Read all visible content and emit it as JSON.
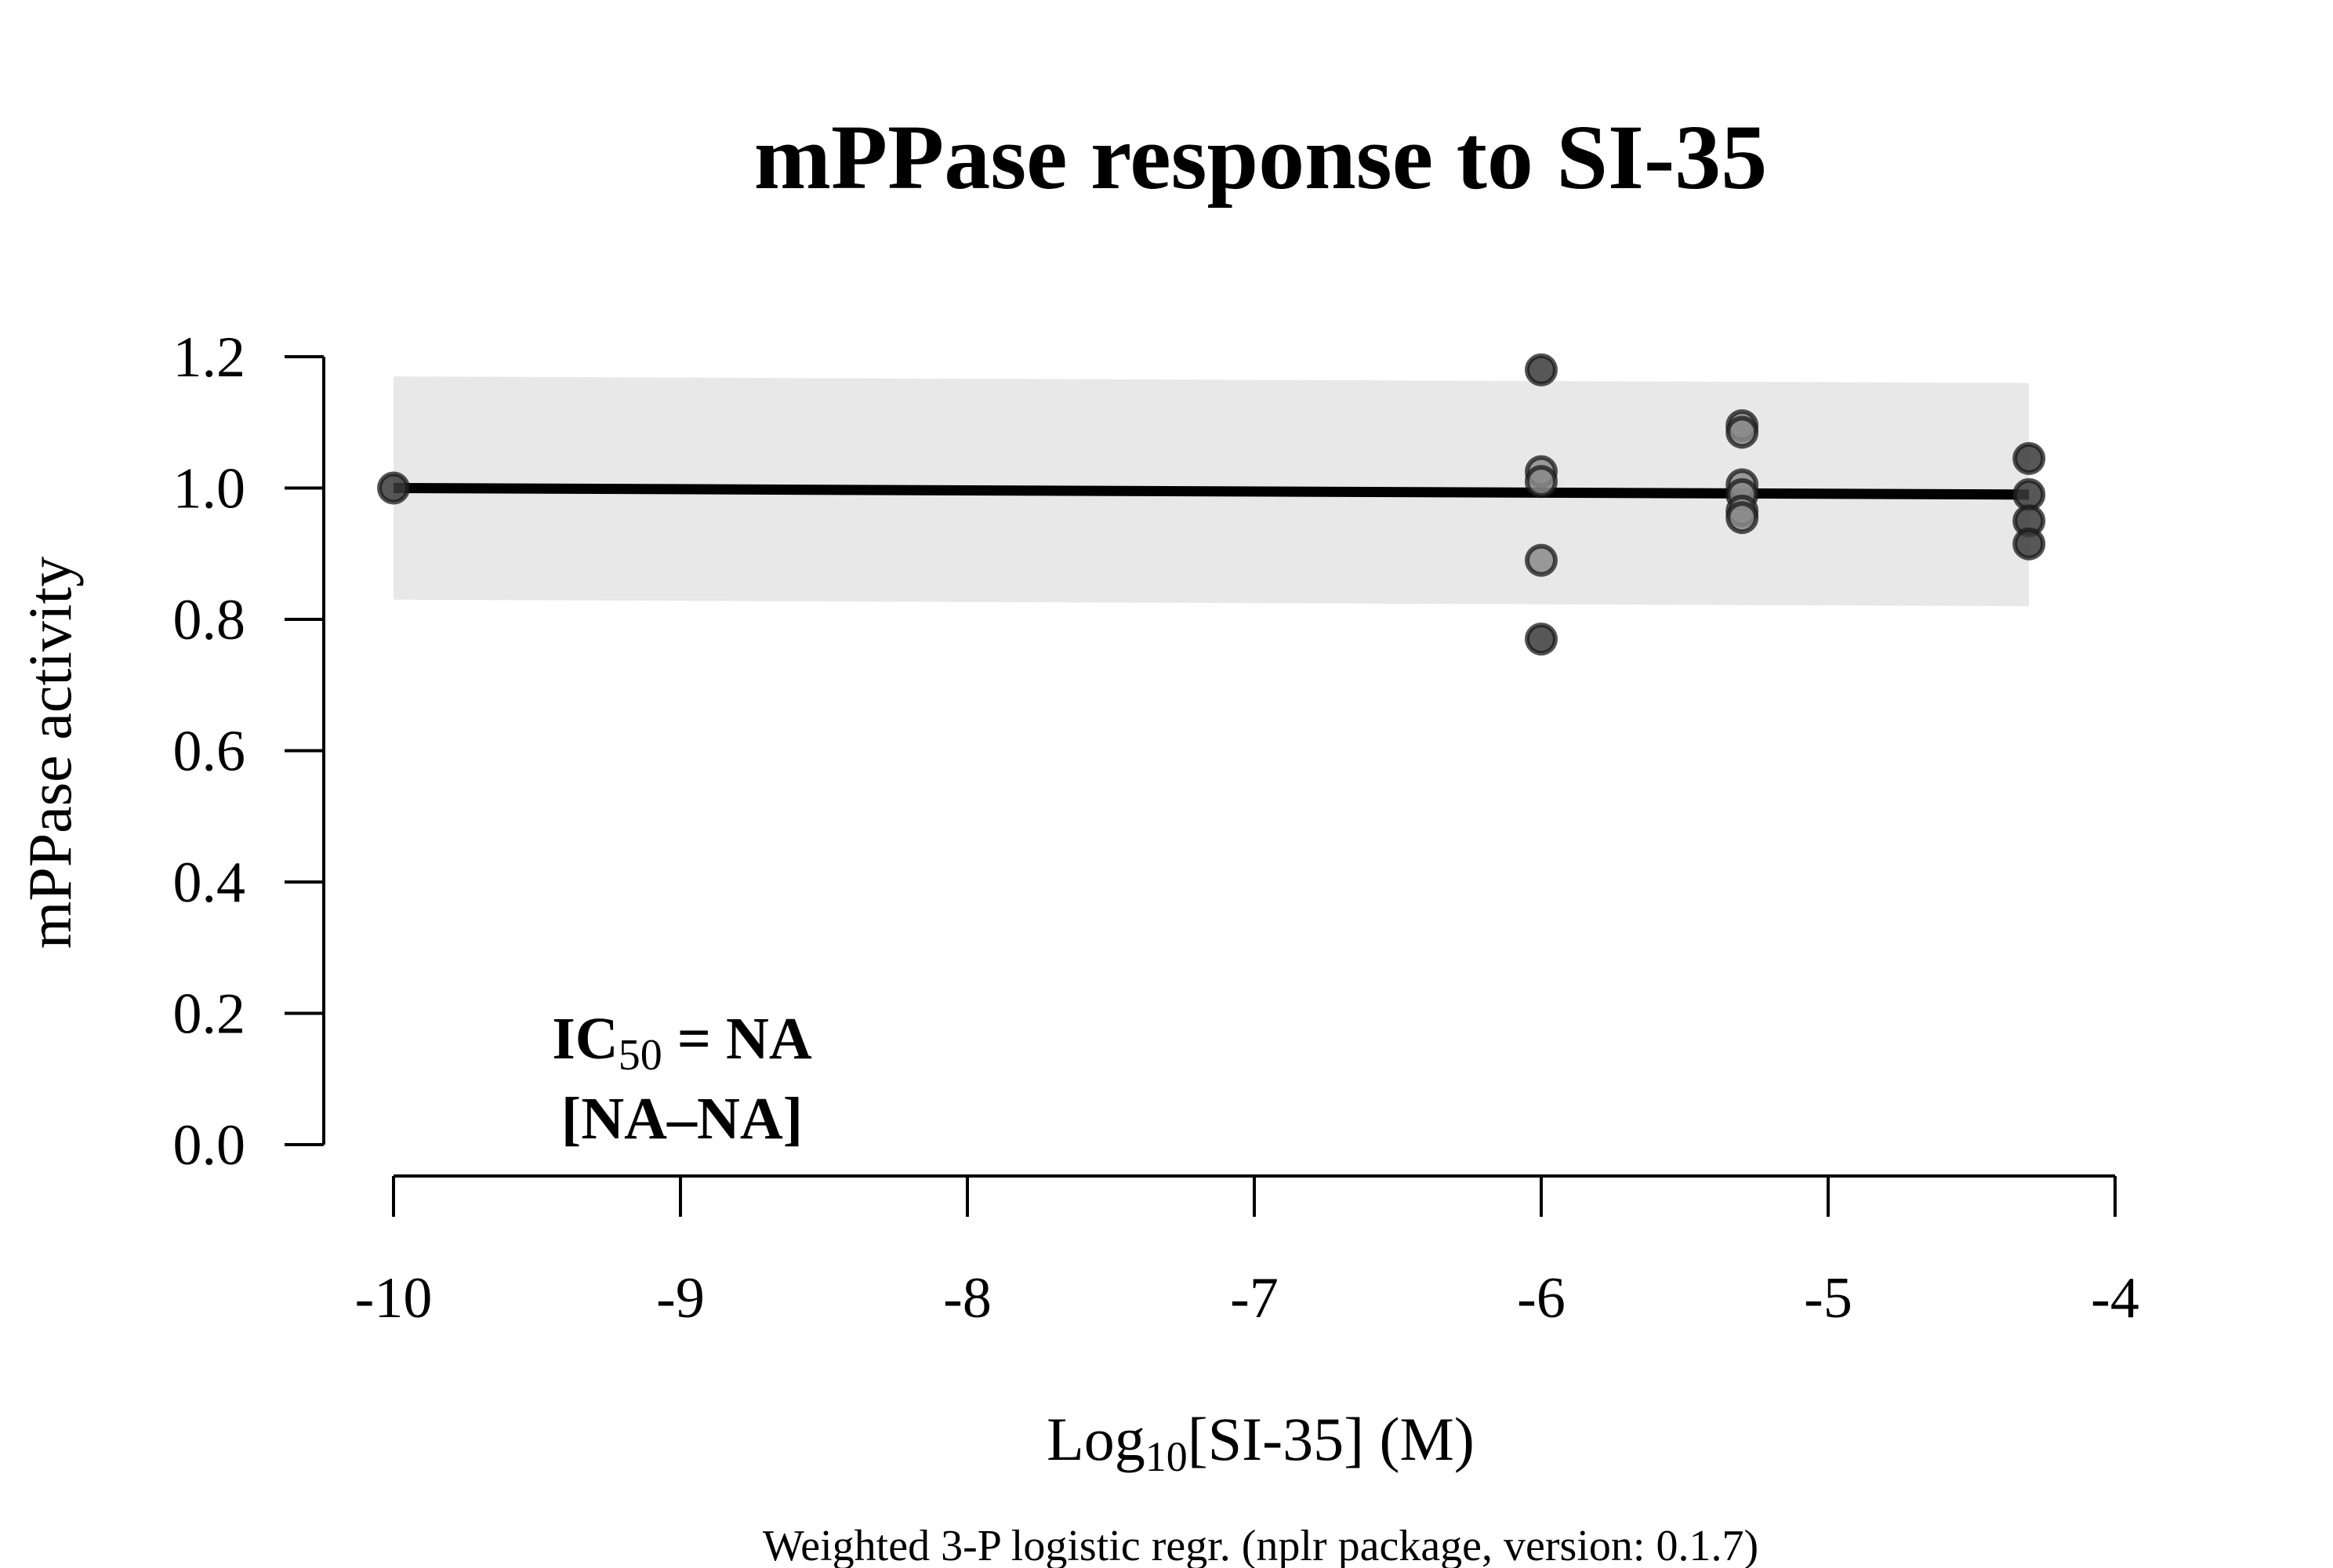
{
  "chart_data": {
    "type": "scatter",
    "title": "mPPase response to SI-35",
    "xlabel": {
      "prefix": "Log",
      "sub": "10",
      "suffix": "[SI-35] (M)"
    },
    "ylabel": "mPPase activity",
    "caption": "Weighted 3-P logistic regr. (nplr package, version: 0.1.7)",
    "annotation": {
      "line1_prefix": "IC",
      "line1_sub": "50",
      "line1_suffix": " = NA",
      "line2": "[NA–NA]"
    },
    "xlim": [
      -10,
      -4
    ],
    "ylim": [
      0,
      1.2
    ],
    "x_ticks": [
      -10,
      -9,
      -8,
      -7,
      -6,
      -5,
      -4
    ],
    "y_ticks": [
      0.0,
      0.2,
      0.4,
      0.6,
      0.8,
      1.0,
      1.2
    ],
    "x_tick_labels": [
      "-10",
      "-9",
      "-8",
      "-7",
      "-6",
      "-5",
      "-4"
    ],
    "y_tick_labels": [
      "0.0",
      "0.2",
      "0.4",
      "0.6",
      "0.8",
      "1.0",
      "1.2"
    ],
    "points": [
      {
        "x": -10.0,
        "y": 1.0,
        "dark": true
      },
      {
        "x": -6.0,
        "y": 1.18,
        "dark": true
      },
      {
        "x": -6.0,
        "y": 1.025,
        "dark": false
      },
      {
        "x": -6.0,
        "y": 1.01,
        "dark": false
      },
      {
        "x": -6.0,
        "y": 0.89,
        "dark": false
      },
      {
        "x": -6.0,
        "y": 0.77,
        "dark": true
      },
      {
        "x": -5.3,
        "y": 1.095,
        "dark": false
      },
      {
        "x": -5.3,
        "y": 1.085,
        "dark": false
      },
      {
        "x": -5.3,
        "y": 1.005,
        "dark": false
      },
      {
        "x": -5.3,
        "y": 0.99,
        "dark": false
      },
      {
        "x": -5.3,
        "y": 0.965,
        "dark": false
      },
      {
        "x": -5.3,
        "y": 0.955,
        "dark": false
      },
      {
        "x": -4.3,
        "y": 1.045,
        "dark": true
      },
      {
        "x": -4.3,
        "y": 0.99,
        "dark": true
      },
      {
        "x": -4.3,
        "y": 0.95,
        "dark": true
      },
      {
        "x": -4.3,
        "y": 0.915,
        "dark": true
      }
    ],
    "fit_line": {
      "x": [
        -10.0,
        -4.3
      ],
      "y": [
        1.0,
        0.99
      ]
    },
    "confidence_band": {
      "x": [
        -10.0,
        -4.3
      ],
      "lower": [
        0.83,
        0.82
      ],
      "upper": [
        1.17,
        1.16
      ]
    },
    "colors": {
      "band": "#e8e8e8",
      "line": "#000000",
      "point_dark": "#3a3a3a",
      "point_light": "#8a8a8a",
      "point_stroke": "#1a1a1a"
    }
  }
}
